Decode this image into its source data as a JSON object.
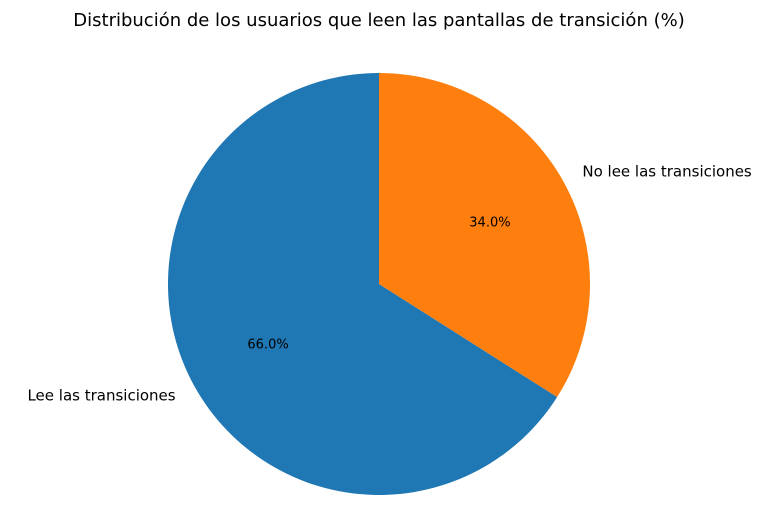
{
  "chart_data": {
    "type": "pie",
    "title": "Distribución de los usuarios que leen las pantallas de transición (%)",
    "categories": [
      "Lee las transiciones",
      "No lee las transiciones"
    ],
    "values": [
      66.0,
      34.0
    ],
    "percent_labels": [
      "66.0%",
      "34.0%"
    ],
    "colors": [
      "#1f77b4",
      "#ff7f0e"
    ],
    "start_angle_deg": 90,
    "direction": "counterclockwise",
    "legend": "none"
  }
}
